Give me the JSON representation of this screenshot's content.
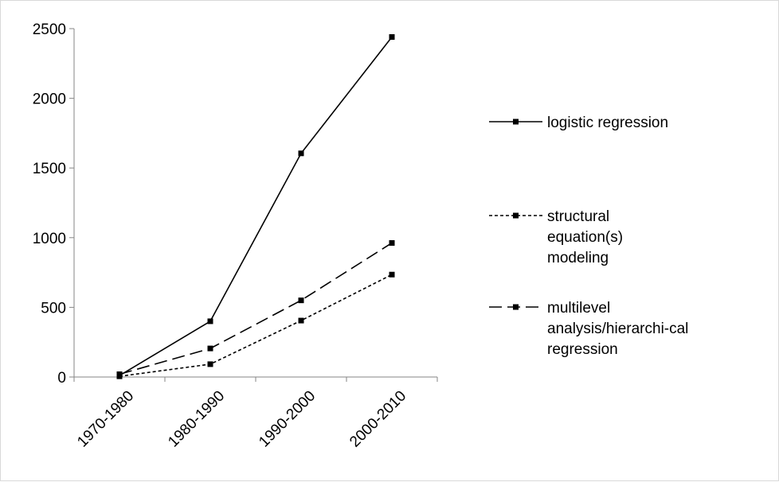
{
  "chart_data": {
    "type": "line",
    "categories": [
      "1970-1980",
      "1980-1990",
      "1990-2000",
      "2000-2010"
    ],
    "ylim": [
      0,
      2500
    ],
    "yticks": [
      0,
      500,
      1000,
      1500,
      2000,
      2500
    ],
    "grid": false,
    "legend_position": "right",
    "series": [
      {
        "name": "logistic regression",
        "dash": "solid",
        "color": "#000000",
        "values": [
          10,
          400,
          1605,
          2440
        ]
      },
      {
        "name": "structural equation(s) modeling",
        "dash": "dotted",
        "color": "#000000",
        "values": [
          5,
          92,
          405,
          735
        ]
      },
      {
        "name": "multilevel analysis/hierarchi-cal regression",
        "dash": "dashed",
        "color": "#000000",
        "values": [
          20,
          205,
          550,
          962
        ]
      }
    ],
    "legend_lines": [
      [
        "logistic regression"
      ],
      [
        "structural",
        "equation(s)",
        "modeling"
      ],
      [
        "multilevel",
        "analysis/hierarchi-cal",
        "regression"
      ]
    ]
  }
}
